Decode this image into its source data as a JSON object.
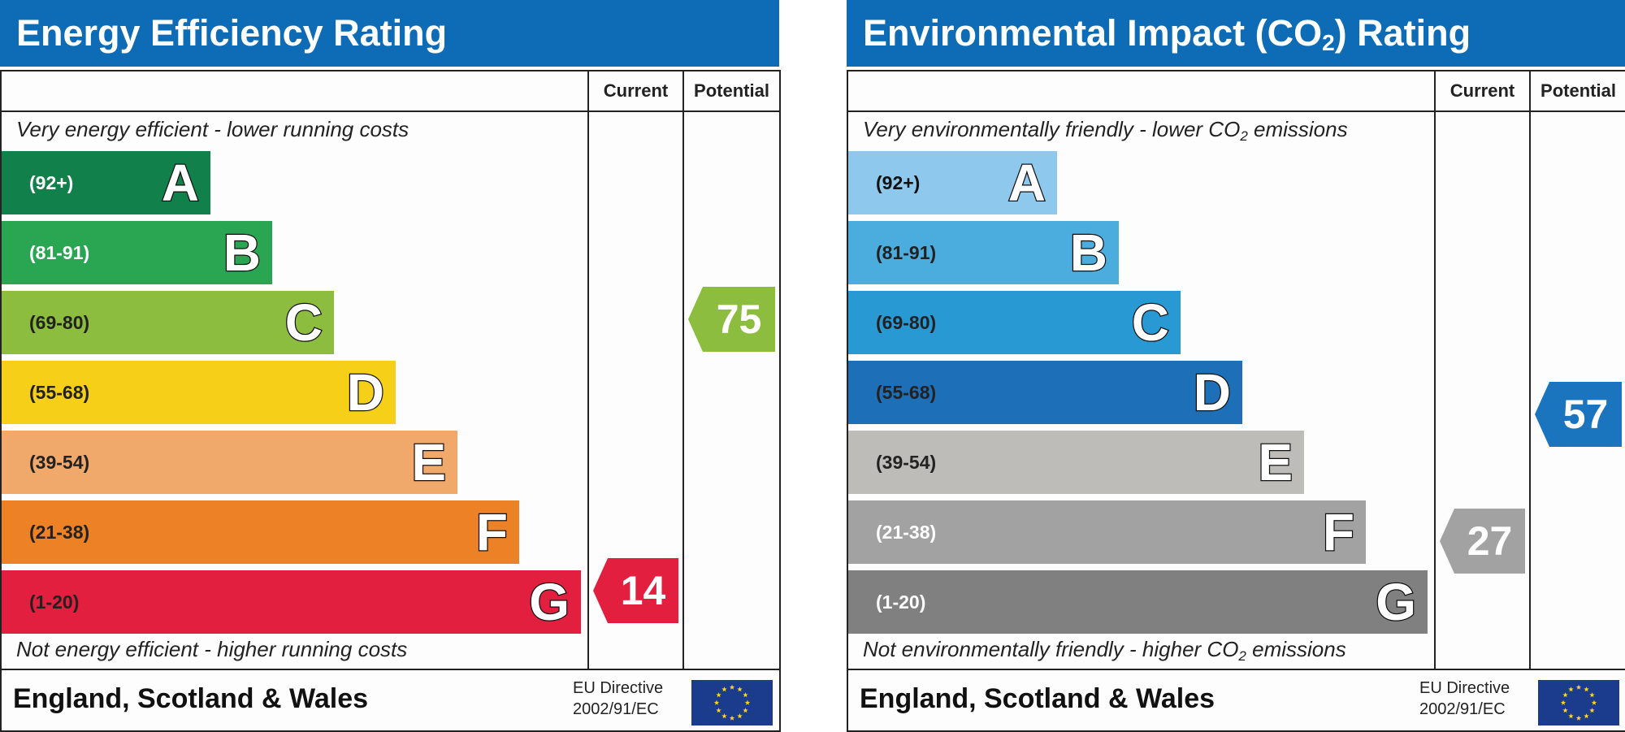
{
  "charts": [
    {
      "title": "Energy Efficiency Rating",
      "col_current": "Current",
      "col_potential": "Potential",
      "note_top": "Very energy efficient - lower running costs",
      "note_bottom": "Not energy efficient - higher running costs",
      "region": "England, Scotland & Wales",
      "eu_line1": "EU Directive",
      "eu_line2": "2002/91/EC",
      "bands": [
        {
          "range": "(92+)",
          "letter": "A",
          "color": "#12804a",
          "text_color": "#ffffff"
        },
        {
          "range": "(81-91)",
          "letter": "B",
          "color": "#2aa552",
          "text_color": "#ffffff"
        },
        {
          "range": "(69-80)",
          "letter": "C",
          "color": "#8cbd3f",
          "text_color": "#222222"
        },
        {
          "range": "(55-68)",
          "letter": "D",
          "color": "#f5cf18",
          "text_color": "#222222"
        },
        {
          "range": "(39-54)",
          "letter": "E",
          "color": "#f1a86b",
          "text_color": "#222222"
        },
        {
          "range": "(21-38)",
          "letter": "F",
          "color": "#ec8126",
          "text_color": "#222222"
        },
        {
          "range": "(1-20)",
          "letter": "G",
          "color": "#e21f3f",
          "text_color": "#222222"
        }
      ],
      "current": {
        "value": "14",
        "band": "G",
        "color": "#e21f3f"
      },
      "potential": {
        "value": "75",
        "band": "C",
        "color": "#8cbd3f"
      }
    },
    {
      "title": "Environmental Impact (CO",
      "title_sub": "2",
      "title_end": ") Rating",
      "col_current": "Current",
      "col_potential": "Potential",
      "note_top": "Very environmentally friendly - lower CO",
      "note_top_sub": "2",
      "note_top_end": " emissions",
      "note_bottom": "Not environmentally friendly - higher CO",
      "note_bottom_sub": "2",
      "note_bottom_end": " emissions",
      "region": "England, Scotland & Wales",
      "eu_line1": "EU Directive",
      "eu_line2": "2002/91/EC",
      "bands": [
        {
          "range": "(92+)",
          "letter": "A",
          "color": "#8ec8ec",
          "text_color": "#111111"
        },
        {
          "range": "(81-91)",
          "letter": "B",
          "color": "#4badde",
          "text_color": "#222222"
        },
        {
          "range": "(69-80)",
          "letter": "C",
          "color": "#2999d3",
          "text_color": "#222222"
        },
        {
          "range": "(55-68)",
          "letter": "D",
          "color": "#1d6fb8",
          "text_color": "#222222"
        },
        {
          "range": "(39-54)",
          "letter": "E",
          "color": "#bdbcb8",
          "text_color": "#222222"
        },
        {
          "range": "(21-38)",
          "letter": "F",
          "color": "#a2a2a2",
          "text_color": "#ffffff"
        },
        {
          "range": "(1-20)",
          "letter": "G",
          "color": "#808080",
          "text_color": "#ffffff"
        }
      ],
      "current": {
        "value": "27",
        "band": "F",
        "color": "#a2a2a2"
      },
      "potential": {
        "value": "57",
        "band": "D/E",
        "color": "#1b74be"
      }
    }
  ],
  "chart_data": [
    {
      "type": "bar",
      "title": "Energy Efficiency Rating",
      "categories": [
        "A",
        "B",
        "C",
        "D",
        "E",
        "F",
        "G"
      ],
      "ranges": [
        "92+",
        "81-91",
        "69-80",
        "55-68",
        "39-54",
        "21-38",
        "1-20"
      ],
      "current": 14,
      "potential": 75
    },
    {
      "type": "bar",
      "title": "Environmental Impact (CO2) Rating",
      "categories": [
        "A",
        "B",
        "C",
        "D",
        "E",
        "F",
        "G"
      ],
      "ranges": [
        "92+",
        "81-91",
        "69-80",
        "55-68",
        "39-54",
        "21-38",
        "1-20"
      ],
      "current": 27,
      "potential": 57
    }
  ]
}
